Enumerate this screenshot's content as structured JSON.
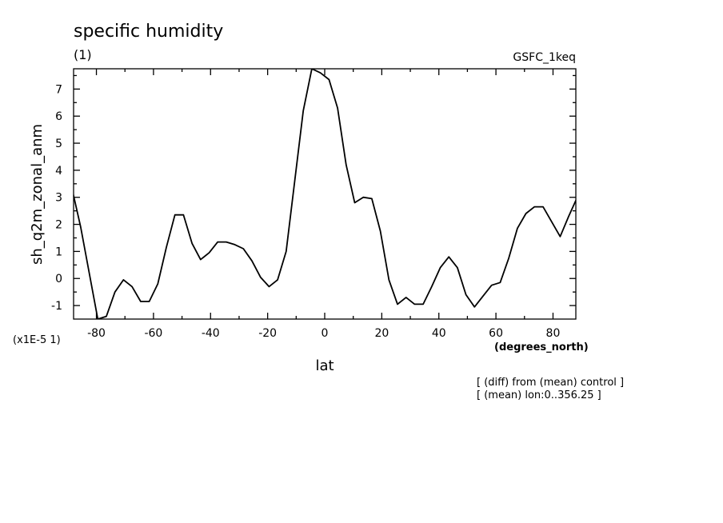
{
  "chart_data": {
    "type": "line",
    "title": "specific humidity",
    "subtitle": "(1)",
    "dataset_label": "GSFC_1keq",
    "xlabel": "lat",
    "xunits": "(degrees_north)",
    "ylabel": "sh_q2m_zonal_anm",
    "yscale_label": "(x1E-5 1)",
    "notes": [
      "[ (diff) from (mean) control ]",
      "[ (mean) lon:0..356.25 ]"
    ],
    "xlim": [
      -88,
      88
    ],
    "ylim": [
      -1.5,
      7.75
    ],
    "xticks": [
      -80,
      -60,
      -40,
      -20,
      0,
      20,
      40,
      60,
      80
    ],
    "yticks": [
      -1,
      0,
      1,
      2,
      3,
      4,
      5,
      6,
      7
    ],
    "grid": false,
    "x": [
      -88.5,
      -85.5,
      -82.5,
      -79.5,
      -76.5,
      -73.5,
      -70.5,
      -67.5,
      -64.5,
      -61.5,
      -58.5,
      -55.5,
      -52.5,
      -49.5,
      -46.5,
      -43.5,
      -40.5,
      -37.5,
      -34.5,
      -31.5,
      -28.5,
      -25.5,
      -22.5,
      -19.5,
      -16.5,
      -13.5,
      -10.5,
      -7.5,
      -4.5,
      -1.5,
      1.5,
      4.5,
      7.5,
      10.5,
      13.5,
      16.5,
      19.5,
      22.5,
      25.5,
      28.5,
      31.5,
      34.5,
      37.5,
      40.5,
      43.5,
      46.5,
      49.5,
      52.5,
      55.5,
      58.5,
      61.5,
      64.5,
      67.5,
      70.5,
      73.5,
      76.5,
      79.5,
      82.5,
      85.5,
      88.5
    ],
    "y": [
      3.3,
      1.9,
      0.2,
      -1.5,
      -1.4,
      -0.5,
      -0.05,
      -0.3,
      -0.85,
      -0.85,
      -0.2,
      1.15,
      2.35,
      2.35,
      1.3,
      0.7,
      0.95,
      1.35,
      1.35,
      1.25,
      1.1,
      0.65,
      0.05,
      -0.3,
      -0.05,
      1.0,
      3.6,
      6.2,
      7.75,
      7.6,
      7.35,
      6.3,
      4.2,
      2.8,
      3.0,
      2.95,
      1.75,
      -0.05,
      -0.95,
      -0.7,
      -0.95,
      -0.95,
      -0.3,
      0.4,
      0.8,
      0.4,
      -0.6,
      -1.05,
      -0.65,
      -0.25,
      -0.15,
      0.75,
      1.85,
      2.4,
      2.65,
      2.65,
      2.1,
      1.55,
      2.3,
      3.0
    ]
  }
}
